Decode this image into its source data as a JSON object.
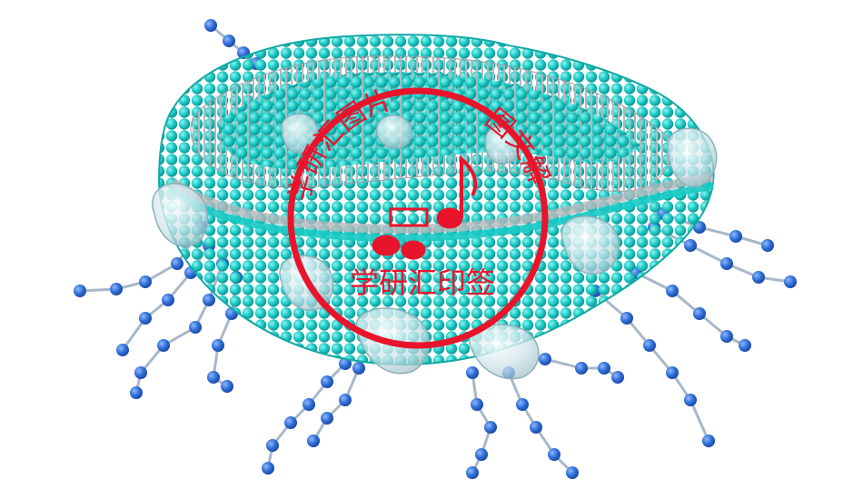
{
  "image": {
    "subject": "liposome-cross-section-with-peg-chains",
    "background_color": "#ffffff",
    "lipid_head_color": "#19c9c4",
    "lipid_tail_color": "#b4b8bc",
    "protein_color": "#cfe4ea",
    "chain_bead_color": "#2f6fd6",
    "chain_link_color": "#a9b8c8"
  },
  "watermark": {
    "color": "#e8142b",
    "arc_text": "学研汇图片",
    "arc_text_right": "图文解",
    "bottom_text": "学研汇印签"
  }
}
